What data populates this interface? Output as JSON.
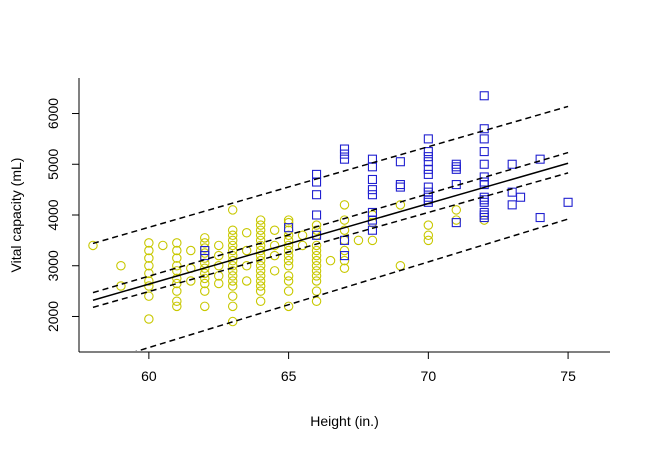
{
  "chart_data": {
    "type": "scatter",
    "title": "",
    "xlabel": "Height (in.)",
    "ylabel": "Vital capacity (mL)",
    "xlim": [
      57.5,
      76.5
    ],
    "ylim": [
      1300,
      6700
    ],
    "xticks": [
      60,
      65,
      70,
      75
    ],
    "yticks": [
      2000,
      3000,
      4000,
      5000,
      6000
    ],
    "grid": false,
    "legend": "none",
    "colors": {
      "female": "#c8c800",
      "male": "#2020d0",
      "line": "#000000"
    },
    "series": [
      {
        "marker": "circle",
        "color": "#c8c800",
        "points": [
          [
            58,
            3400
          ],
          [
            59,
            3000
          ],
          [
            59,
            2600
          ],
          [
            60,
            3450
          ],
          [
            60,
            3300
          ],
          [
            60,
            3150
          ],
          [
            60,
            3000
          ],
          [
            60,
            2850
          ],
          [
            60,
            2700
          ],
          [
            60,
            2600
          ],
          [
            60,
            2400
          ],
          [
            60,
            1950
          ],
          [
            60.5,
            3400
          ],
          [
            61,
            3450
          ],
          [
            61,
            3300
          ],
          [
            61,
            3150
          ],
          [
            61,
            3000
          ],
          [
            61,
            2900
          ],
          [
            61,
            2750
          ],
          [
            61,
            2650
          ],
          [
            61,
            2500
          ],
          [
            61,
            2300
          ],
          [
            61,
            2200
          ],
          [
            61.5,
            3300
          ],
          [
            61.5,
            2950
          ],
          [
            61.5,
            2700
          ],
          [
            62,
            3550
          ],
          [
            62,
            3450
          ],
          [
            62,
            3350
          ],
          [
            62,
            3250
          ],
          [
            62,
            3150
          ],
          [
            62,
            3050
          ],
          [
            62,
            2950
          ],
          [
            62,
            2850
          ],
          [
            62,
            2750
          ],
          [
            62,
            2650
          ],
          [
            62,
            2500
          ],
          [
            62,
            2200
          ],
          [
            62.5,
            3400
          ],
          [
            62.5,
            3200
          ],
          [
            62.5,
            3000
          ],
          [
            62.5,
            2800
          ],
          [
            62.5,
            2650
          ],
          [
            63,
            4100
          ],
          [
            63,
            3700
          ],
          [
            63,
            3600
          ],
          [
            63,
            3500
          ],
          [
            63,
            3400
          ],
          [
            63,
            3300
          ],
          [
            63,
            3200
          ],
          [
            63,
            3100
          ],
          [
            63,
            3000
          ],
          [
            63,
            2900
          ],
          [
            63,
            2800
          ],
          [
            63,
            2700
          ],
          [
            63,
            2600
          ],
          [
            63,
            2400
          ],
          [
            63,
            2200
          ],
          [
            63,
            1900
          ],
          [
            63.5,
            3650
          ],
          [
            63.5,
            3300
          ],
          [
            63.5,
            3000
          ],
          [
            63.5,
            2700
          ],
          [
            64,
            3900
          ],
          [
            64,
            3800
          ],
          [
            64,
            3700
          ],
          [
            64,
            3600
          ],
          [
            64,
            3500
          ],
          [
            64,
            3400
          ],
          [
            64,
            3300
          ],
          [
            64,
            3200
          ],
          [
            64,
            3100
          ],
          [
            64,
            3000
          ],
          [
            64,
            2900
          ],
          [
            64,
            2800
          ],
          [
            64,
            2700
          ],
          [
            64,
            2600
          ],
          [
            64,
            2500
          ],
          [
            64,
            2300
          ],
          [
            64.5,
            3700
          ],
          [
            64.5,
            3400
          ],
          [
            64.5,
            3200
          ],
          [
            64.5,
            2900
          ],
          [
            65,
            3900
          ],
          [
            65,
            3850
          ],
          [
            65,
            3700
          ],
          [
            65,
            3600
          ],
          [
            65,
            3500
          ],
          [
            65,
            3400
          ],
          [
            65,
            3300
          ],
          [
            65,
            3200
          ],
          [
            65,
            3100
          ],
          [
            65,
            3000
          ],
          [
            65,
            2800
          ],
          [
            65,
            2700
          ],
          [
            65,
            2500
          ],
          [
            65,
            2200
          ],
          [
            65.5,
            3600
          ],
          [
            65.5,
            3400
          ],
          [
            66,
            3800
          ],
          [
            66,
            3700
          ],
          [
            66,
            3600
          ],
          [
            66,
            3400
          ],
          [
            66,
            3300
          ],
          [
            66,
            3200
          ],
          [
            66,
            3100
          ],
          [
            66,
            3000
          ],
          [
            66,
            2900
          ],
          [
            66,
            2800
          ],
          [
            66,
            2700
          ],
          [
            66,
            2500
          ],
          [
            66,
            2300
          ],
          [
            66.5,
            3100
          ],
          [
            67,
            4200
          ],
          [
            67,
            3900
          ],
          [
            67,
            3700
          ],
          [
            67,
            3500
          ],
          [
            67,
            3300
          ],
          [
            67,
            3100
          ],
          [
            67,
            2950
          ],
          [
            67.5,
            3500
          ],
          [
            68,
            4000
          ],
          [
            68,
            3850
          ],
          [
            68,
            3500
          ],
          [
            69,
            4200
          ],
          [
            69,
            3000
          ],
          [
            70,
            3800
          ],
          [
            70,
            3600
          ],
          [
            70,
            3500
          ],
          [
            71,
            4100
          ],
          [
            71,
            3900
          ],
          [
            72,
            3900
          ]
        ]
      },
      {
        "marker": "square",
        "color": "#2020d0",
        "points": [
          [
            62,
            3300
          ],
          [
            62,
            3200
          ],
          [
            65,
            3750
          ],
          [
            66,
            4800
          ],
          [
            66,
            4650
          ],
          [
            66,
            4400
          ],
          [
            66,
            4000
          ],
          [
            66,
            3600
          ],
          [
            67,
            5300
          ],
          [
            67,
            5200
          ],
          [
            67,
            5100
          ],
          [
            67,
            3500
          ],
          [
            67,
            3200
          ],
          [
            68,
            5100
          ],
          [
            68,
            4950
          ],
          [
            68,
            4700
          ],
          [
            68,
            4500
          ],
          [
            68,
            4400
          ],
          [
            68,
            4050
          ],
          [
            68,
            3900
          ],
          [
            68,
            3700
          ],
          [
            69,
            5050
          ],
          [
            69,
            4600
          ],
          [
            69,
            4550
          ],
          [
            70,
            5500
          ],
          [
            70,
            5250
          ],
          [
            70,
            5150
          ],
          [
            70,
            5050
          ],
          [
            70,
            4900
          ],
          [
            70,
            4800
          ],
          [
            70,
            4550
          ],
          [
            70,
            4450
          ],
          [
            70,
            4350
          ],
          [
            70,
            4300
          ],
          [
            70,
            4250
          ],
          [
            71,
            5000
          ],
          [
            71,
            4950
          ],
          [
            71,
            4900
          ],
          [
            71,
            4600
          ],
          [
            71,
            3850
          ],
          [
            72,
            6350
          ],
          [
            72,
            5700
          ],
          [
            72,
            5500
          ],
          [
            72,
            5250
          ],
          [
            72,
            5000
          ],
          [
            72,
            4750
          ],
          [
            72,
            4650
          ],
          [
            72,
            4600
          ],
          [
            72,
            4350
          ],
          [
            72,
            4300
          ],
          [
            72,
            4250
          ],
          [
            72,
            4050
          ],
          [
            72,
            4000
          ],
          [
            72,
            3950
          ],
          [
            73,
            5000
          ],
          [
            73,
            4450
          ],
          [
            73,
            4200
          ],
          [
            73.3,
            4350
          ],
          [
            74,
            5100
          ],
          [
            74,
            3950
          ],
          [
            75,
            4250
          ]
        ]
      }
    ],
    "lines": [
      {
        "style": "solid",
        "points": [
          [
            58,
            2320
          ],
          [
            75,
            5020
          ]
        ]
      },
      {
        "style": "dashed",
        "points": [
          [
            58,
            2180
          ],
          [
            75,
            4830
          ]
        ]
      },
      {
        "style": "dashed",
        "points": [
          [
            58,
            2470
          ],
          [
            75,
            5230
          ]
        ]
      },
      {
        "style": "dashed",
        "points": [
          [
            58,
            3440
          ],
          [
            75,
            6140
          ]
        ]
      },
      {
        "style": "dashed",
        "points": [
          [
            58,
            1050
          ],
          [
            75,
            3920
          ]
        ]
      }
    ]
  }
}
